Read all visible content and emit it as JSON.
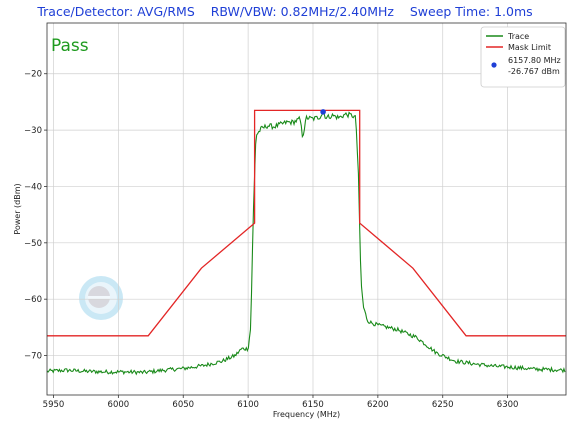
{
  "header": {
    "detector_label": "Trace/Detector: AVG/RMS",
    "bw_label": "RBW/VBW: 0.82MHz/2.40MHz",
    "sweep_label": "Sweep Time: 1.0ms"
  },
  "status": {
    "text": "Pass",
    "color": "#1e9a1e"
  },
  "chart_data": {
    "type": "line",
    "xlabel": "Frequency (MHz)",
    "ylabel": "Power (dBm)",
    "xlim": [
      5945,
      6345
    ],
    "ylim": [
      -77,
      -11
    ],
    "x_ticks": [
      5950,
      6000,
      6050,
      6100,
      6150,
      6200,
      6250,
      6300
    ],
    "y_ticks": [
      -70,
      -60,
      -50,
      -40,
      -30,
      -20
    ],
    "grid": true,
    "legend_position": "top-right",
    "series": [
      {
        "name": "Trace",
        "color": "#1a8a1a",
        "x": [
          5945,
          5960,
          5975,
          5990,
          6005,
          6020,
          6035,
          6050,
          6065,
          6080,
          6090,
          6095,
          6100,
          6102,
          6104,
          6106,
          6110,
          6115,
          6120,
          6125,
          6130,
          6135,
          6140,
          6142,
          6145,
          6150,
          6155,
          6158,
          6160,
          6165,
          6170,
          6175,
          6180,
          6183,
          6185,
          6187,
          6189,
          6192,
          6195,
          6200,
          6215,
          6230,
          6245,
          6260,
          6275,
          6290,
          6305,
          6320,
          6335,
          6345
        ],
        "y": [
          -72.8,
          -72.6,
          -72.8,
          -72.9,
          -72.9,
          -73.0,
          -72.6,
          -72.3,
          -71.8,
          -71.0,
          -70.0,
          -68.8,
          -68.8,
          -65.0,
          -45.0,
          -31.0,
          -29.8,
          -29.2,
          -29.4,
          -29.0,
          -28.6,
          -28.6,
          -28.0,
          -31.2,
          -27.8,
          -28.0,
          -27.7,
          -26.8,
          -27.8,
          -27.4,
          -27.8,
          -27.2,
          -27.4,
          -27.8,
          -38.0,
          -57.0,
          -61.5,
          -63.8,
          -64.2,
          -64.6,
          -65.4,
          -66.8,
          -69.5,
          -71.0,
          -71.5,
          -71.9,
          -72.1,
          -72.4,
          -72.5,
          -72.6
        ]
      },
      {
        "name": "Mask Limit",
        "color": "#e32626",
        "x": [
          5945,
          6023,
          6064,
          6105,
          6105,
          6186,
          6186,
          6227,
          6268,
          6345
        ],
        "y": [
          -66.5,
          -66.5,
          -54.5,
          -46.5,
          -26.5,
          -26.5,
          -46.5,
          -54.5,
          -66.5,
          -66.5
        ]
      }
    ],
    "marker": {
      "x": 6157.8,
      "y": -26.767,
      "color": "#1f3fd6",
      "label_freq": "6157.80 MHz",
      "label_power": "-26.767 dBm"
    }
  }
}
